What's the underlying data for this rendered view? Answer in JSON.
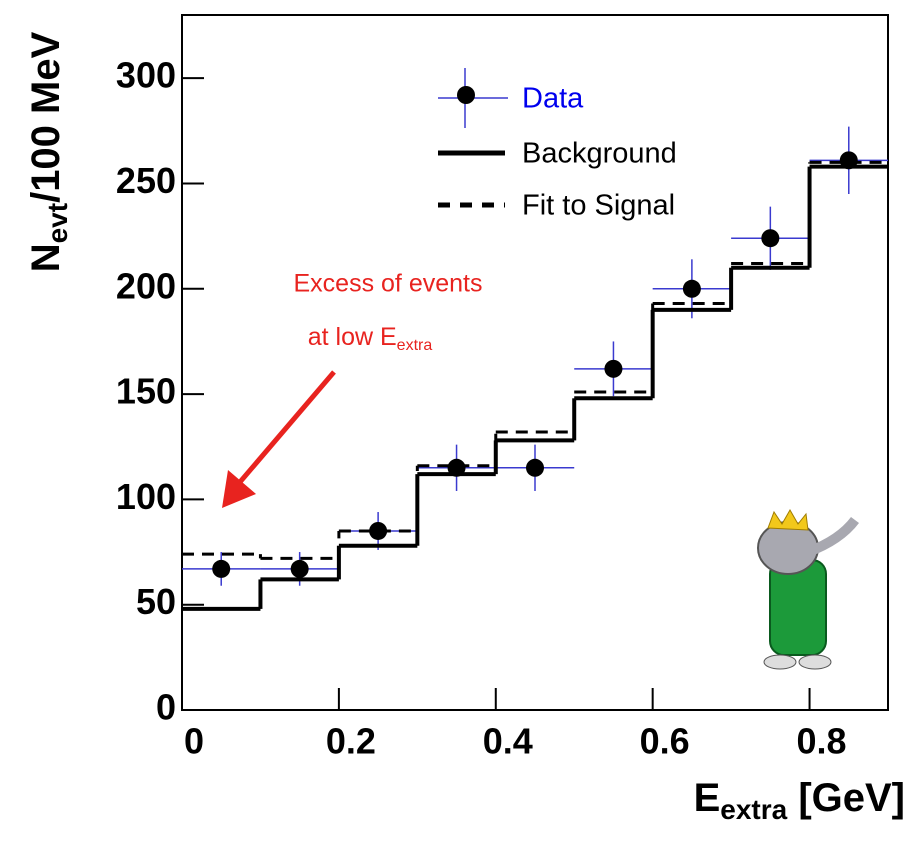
{
  "chart_data": {
    "type": "histogram",
    "y_label": {
      "main": "N",
      "sub": "evt",
      "rest": "/100 MeV"
    },
    "x_label": {
      "main": "E",
      "sub": "extra",
      "rest": " [GeV]"
    },
    "bins": [
      0,
      0.1,
      0.2,
      0.3,
      0.4,
      0.5,
      0.6,
      0.7,
      0.8,
      0.9
    ],
    "xlim": [
      0,
      0.9
    ],
    "ylim": [
      0,
      330
    ],
    "xticks": [
      0,
      0.2,
      0.4,
      0.6,
      0.8
    ],
    "yticks": [
      0,
      50,
      100,
      150,
      200,
      250,
      300
    ],
    "series": [
      {
        "name": "Data",
        "style": "points",
        "color": "#3a3acf",
        "text_color": "#0000ee",
        "values": [
          67,
          67,
          85,
          115,
          115,
          162,
          200,
          224,
          261
        ],
        "errors": [
          8,
          8,
          9,
          11,
          11,
          13,
          14,
          15,
          16
        ]
      },
      {
        "name": "Background",
        "style": "solid",
        "color": "#000000",
        "values": [
          48,
          62,
          78,
          112,
          128,
          148,
          190,
          210,
          258
        ]
      },
      {
        "name": "Fit to Signal",
        "style": "dashed",
        "color": "#000000",
        "values": [
          74,
          72,
          85,
          116,
          132,
          151,
          193,
          212,
          260
        ]
      }
    ],
    "annotation": {
      "line1": "Excess of events",
      "line2": "at low E",
      "line2_sub": "extra",
      "color": "#e8231f"
    }
  }
}
